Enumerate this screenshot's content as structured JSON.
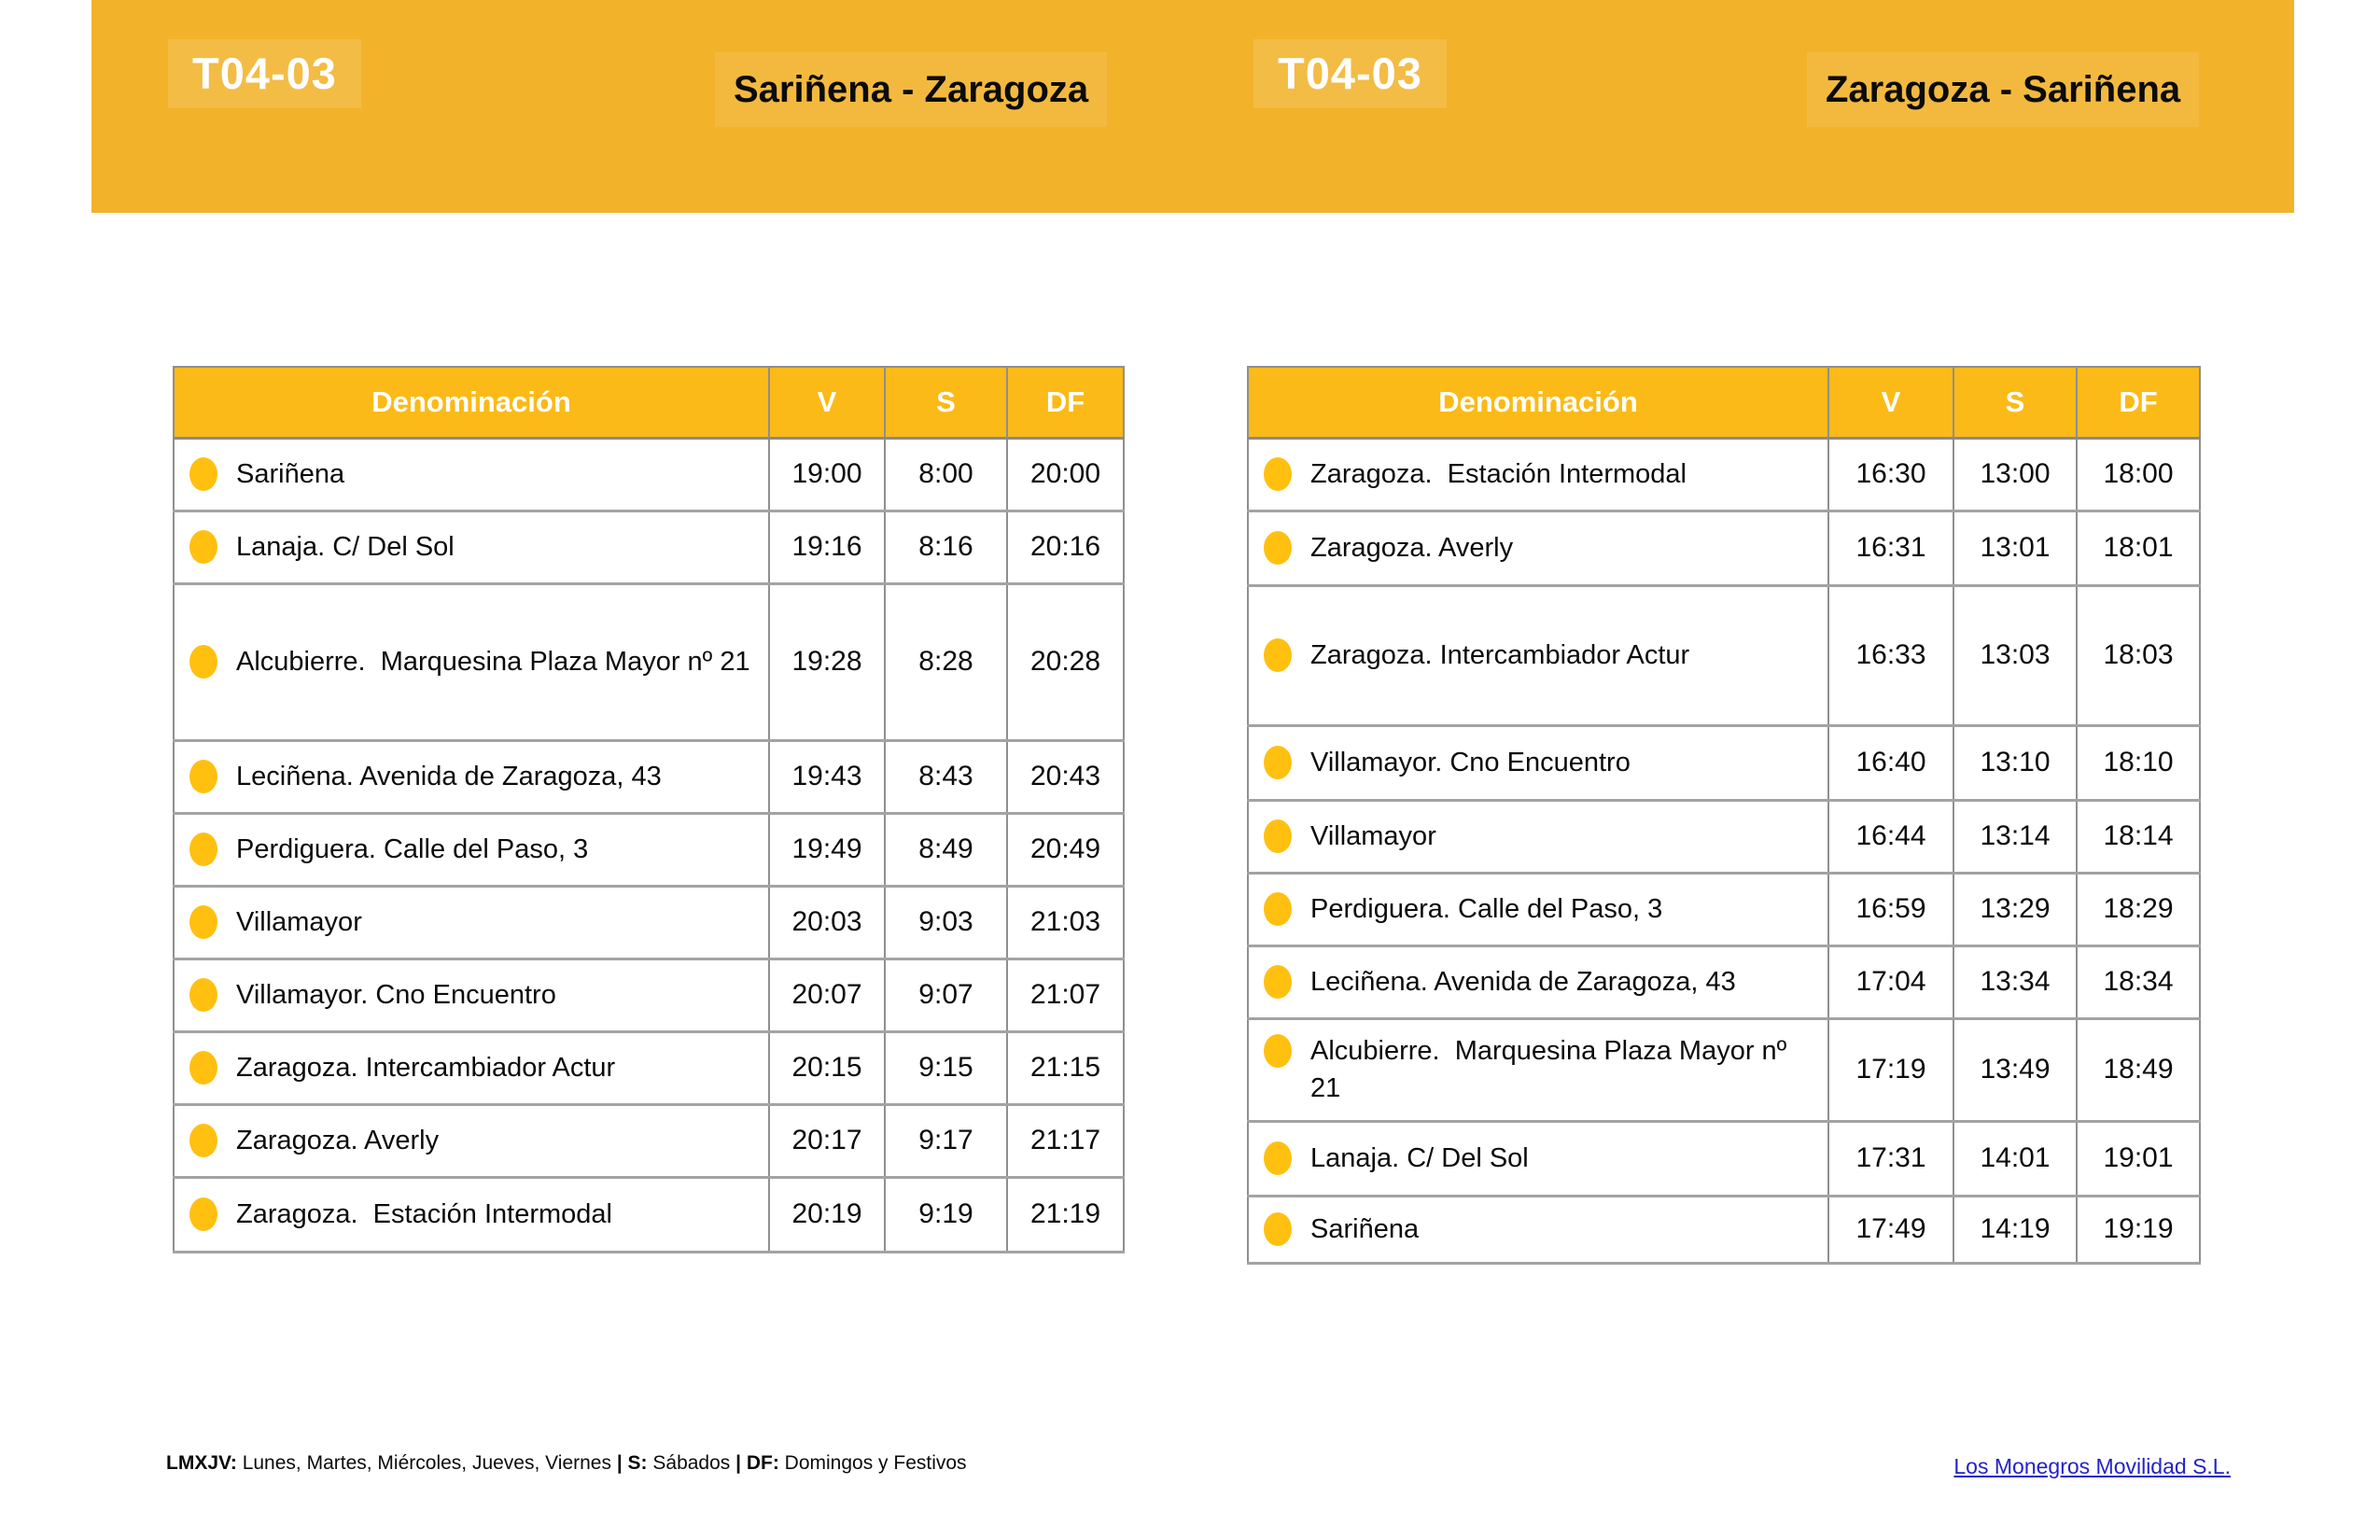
{
  "colors": {
    "band": "#F2B22A",
    "table_header": "#FBBA17",
    "bullet": "#FFC010",
    "link": "#2222CC"
  },
  "header": {
    "left": {
      "code": "T04-03",
      "route": "Sariñena - Zaragoza"
    },
    "right": {
      "code": "T04-03",
      "route": "Zaragoza - Sariñena"
    }
  },
  "tables": [
    {
      "direction": "Sariñena - Zaragoza",
      "columns": [
        "Denominación",
        "V",
        "S",
        "DF"
      ],
      "rows": [
        {
          "stop": "Sariñena",
          "times": [
            "19:00",
            "8:00",
            "20:00"
          ]
        },
        {
          "stop": "Lanaja. C/ Del Sol",
          "times": [
            "19:16",
            "8:16",
            "20:16"
          ]
        },
        {
          "stop": "Alcubierre.  Marquesina Plaza Mayor nº 21",
          "times": [
            "19:28",
            "8:28",
            "20:28"
          ]
        },
        {
          "stop": "Leciñena. Avenida de Zaragoza, 43",
          "times": [
            "19:43",
            "8:43",
            "20:43"
          ]
        },
        {
          "stop": "Perdiguera. Calle del Paso, 3",
          "times": [
            "19:49",
            "8:49",
            "20:49"
          ]
        },
        {
          "stop": "Villamayor",
          "times": [
            "20:03",
            "9:03",
            "21:03"
          ]
        },
        {
          "stop": "Villamayor. Cno Encuentro",
          "times": [
            "20:07",
            "9:07",
            "21:07"
          ]
        },
        {
          "stop": "Zaragoza. Intercambiador Actur",
          "times": [
            "20:15",
            "9:15",
            "21:15"
          ]
        },
        {
          "stop": "Zaragoza. Averly",
          "times": [
            "20:17",
            "9:17",
            "21:17"
          ]
        },
        {
          "stop": "Zaragoza.  Estación Intermodal",
          "times": [
            "20:19",
            "9:19",
            "21:19"
          ]
        }
      ]
    },
    {
      "direction": "Zaragoza - Sariñena",
      "columns": [
        "Denominación",
        "V",
        "S",
        "DF"
      ],
      "rows": [
        {
          "stop": "Zaragoza.  Estación Intermodal",
          "times": [
            "16:30",
            "13:00",
            "18:00"
          ]
        },
        {
          "stop": "Zaragoza. Averly",
          "times": [
            "16:31",
            "13:01",
            "18:01"
          ]
        },
        {
          "stop": "Zaragoza. Intercambiador Actur",
          "times": [
            "16:33",
            "13:03",
            "18:03"
          ]
        },
        {
          "stop": "Villamayor. Cno Encuentro",
          "times": [
            "16:40",
            "13:10",
            "18:10"
          ]
        },
        {
          "stop": "Villamayor",
          "times": [
            "16:44",
            "13:14",
            "18:14"
          ]
        },
        {
          "stop": "Perdiguera. Calle del Paso, 3",
          "times": [
            "16:59",
            "13:29",
            "18:29"
          ]
        },
        {
          "stop": "Leciñena. Avenida de Zaragoza, 43",
          "times": [
            "17:04",
            "13:34",
            "18:34"
          ]
        },
        {
          "stop": "Alcubierre.  Marquesina Plaza Mayor nº 21",
          "times": [
            "17:19",
            "13:49",
            "18:49"
          ]
        },
        {
          "stop": "Lanaja. C/ Del Sol",
          "times": [
            "17:31",
            "14:01",
            "19:01"
          ]
        },
        {
          "stop": "Sariñena",
          "times": [
            "17:49",
            "14:19",
            "19:19"
          ]
        }
      ]
    }
  ],
  "footer": {
    "parts": [
      {
        "text": "LMXJV:",
        "bold": true
      },
      {
        "text": " Lunes, Martes, Miércoles, Jueves, Viernes ",
        "bold": false
      },
      {
        "text": "| S:",
        "bold": true
      },
      {
        "text": " Sábados ",
        "bold": false
      },
      {
        "text": "| DF:",
        "bold": true
      },
      {
        "text": " Domingos y Festivos",
        "bold": false
      }
    ]
  },
  "operator_link": "Los Monegros Movilidad S.L."
}
